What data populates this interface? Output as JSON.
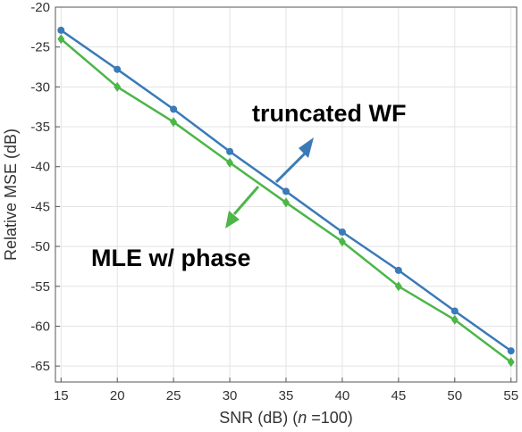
{
  "chart_data": {
    "type": "line",
    "title": "",
    "xlabel": "SNR (dB) (n =100)",
    "xlabel_parts": {
      "prefix": "SNR (dB) (",
      "italic": "n",
      "suffix": " =100)"
    },
    "ylabel": "Relative MSE (dB)",
    "xlim": [
      14.5,
      55.5
    ],
    "ylim": [
      -67,
      -20
    ],
    "xticks": [
      15,
      20,
      25,
      30,
      35,
      40,
      45,
      50,
      55
    ],
    "yticks": [
      -20,
      -25,
      -30,
      -35,
      -40,
      -45,
      -50,
      -55,
      -60,
      -65
    ],
    "grid": true,
    "x": [
      15,
      20,
      25,
      30,
      35,
      40,
      45,
      50,
      55
    ],
    "series": [
      {
        "name": "truncated WF",
        "color": "#3a7ab8",
        "marker": "circle",
        "values": [
          -22.9,
          -27.8,
          -32.8,
          -38.1,
          -43.1,
          -48.2,
          -53.0,
          -58.1,
          -63.1
        ]
      },
      {
        "name": "MLE w/ phase",
        "color": "#4cb648",
        "marker": "diamond",
        "values": [
          -24.0,
          -30.0,
          -34.4,
          -39.5,
          -44.5,
          -49.4,
          -55.0,
          -59.2,
          -64.5
        ]
      }
    ],
    "annotations": [
      {
        "text": "truncated WF",
        "series": 0
      },
      {
        "text": "MLE w/ phase",
        "series": 1
      }
    ]
  }
}
